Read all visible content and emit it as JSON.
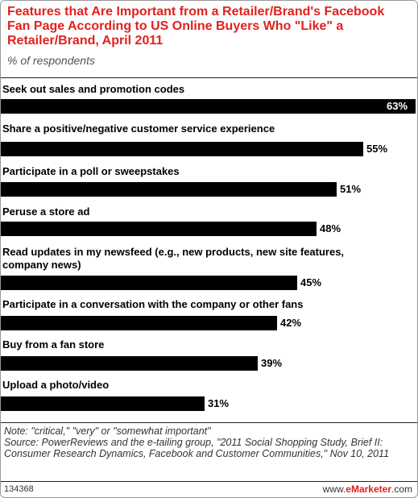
{
  "chart_data": {
    "type": "bar",
    "orientation": "horizontal",
    "title": "Features that Are Important from a Retailer/Brand's Facebook Fan Page According to US Online Buyers Who \"Like\" a Retailer/Brand, April 2011",
    "subtitle": "% of respondents",
    "categories": [
      "Seek out sales and promotion codes",
      "Share a positive/negative customer service experience",
      "Participate in a poll or sweepstakes",
      "Peruse a store ad",
      "Read updates in my newsfeed (e.g., new products, new site features, company news)",
      "Participate in a conversation with the company or other fans",
      "Buy from a fan store",
      "Upload a photo/video"
    ],
    "values": [
      63,
      55,
      51,
      48,
      45,
      42,
      39,
      31
    ],
    "value_labels": [
      "63%",
      "55%",
      "51%",
      "48%",
      "45%",
      "42%",
      "39%",
      "31%"
    ],
    "xlim": [
      0,
      63
    ],
    "grid": false,
    "legend": "none",
    "bar_color": "#000000"
  },
  "notes": [
    "Note: \"critical,\" \"very\" or \"somewhat important\"",
    "Source: PowerReviews and the e-tailing group, \"2011 Social Shopping Study, Brief II: Consumer Research Dynamics, Facebook and Customer Communities,\" Nov 10, 2011"
  ],
  "footer": {
    "id": "134368",
    "brand_prefix": "www.",
    "brand_name": "eMarketer",
    "brand_suffix": ".com"
  },
  "colors": {
    "title": "#e2211c",
    "bar": "#000000"
  }
}
